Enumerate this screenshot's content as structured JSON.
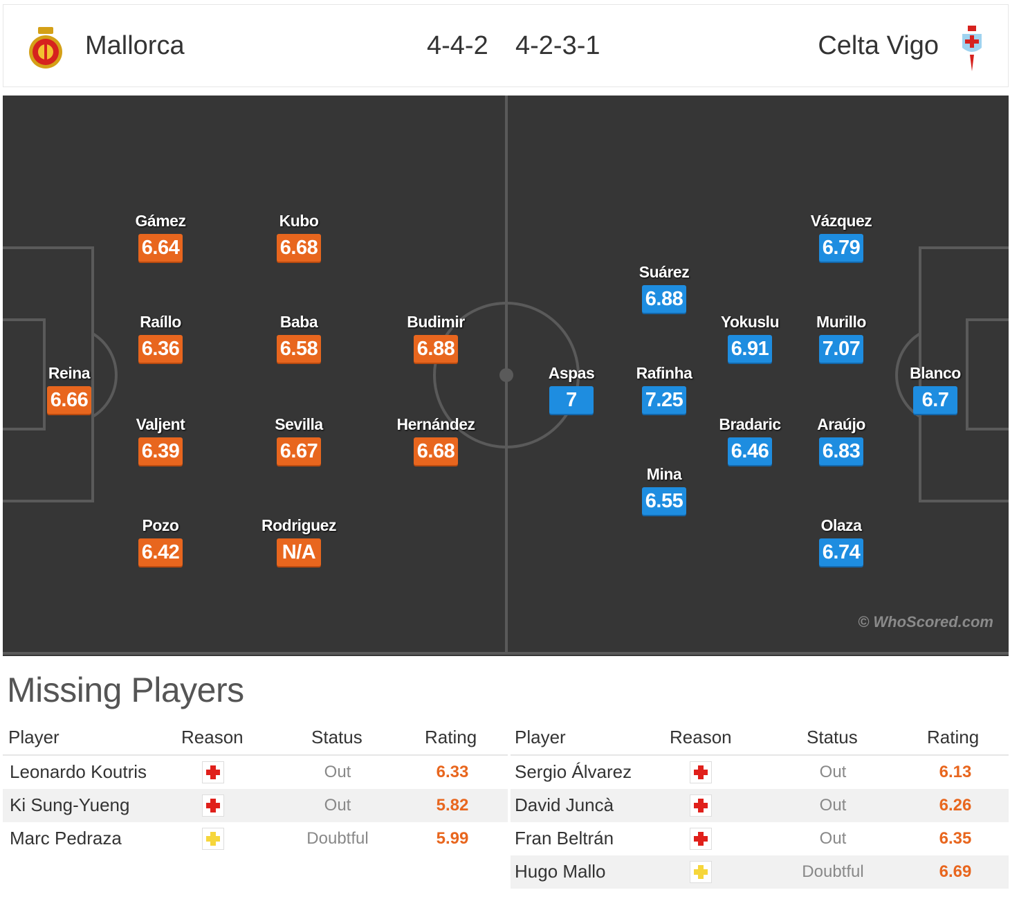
{
  "header": {
    "home_team": "Mallorca",
    "home_formation": "4-4-2",
    "away_formation": "4-2-3-1",
    "away_team": "Celta Vigo",
    "home_crest_icon": "mallorca-crest-icon",
    "away_crest_icon": "celta-vigo-crest-icon"
  },
  "colors": {
    "home_rating": "#e8661e",
    "away_rating": "#1e8de0",
    "pitch": "#363636",
    "injury": "#e0201b",
    "doubtful": "#f6d63b"
  },
  "lineup": {
    "home": [
      {
        "name": "Reina",
        "rating": "6.66"
      },
      {
        "name": "Gámez",
        "rating": "6.64"
      },
      {
        "name": "Raíllo",
        "rating": "6.36"
      },
      {
        "name": "Valjent",
        "rating": "6.39"
      },
      {
        "name": "Pozo",
        "rating": "6.42"
      },
      {
        "name": "Kubo",
        "rating": "6.68"
      },
      {
        "name": "Baba",
        "rating": "6.58"
      },
      {
        "name": "Sevilla",
        "rating": "6.67"
      },
      {
        "name": "Rodriguez",
        "rating": "N/A"
      },
      {
        "name": "Budimir",
        "rating": "6.88"
      },
      {
        "name": "Hernández",
        "rating": "6.68"
      }
    ],
    "away": [
      {
        "name": "Aspas",
        "rating": "7"
      },
      {
        "name": "Suárez",
        "rating": "6.88"
      },
      {
        "name": "Rafinha",
        "rating": "7.25"
      },
      {
        "name": "Mina",
        "rating": "6.55"
      },
      {
        "name": "Yokuslu",
        "rating": "6.91"
      },
      {
        "name": "Bradaric",
        "rating": "6.46"
      },
      {
        "name": "Vázquez",
        "rating": "6.79"
      },
      {
        "name": "Murillo",
        "rating": "7.07"
      },
      {
        "name": "Araújo",
        "rating": "6.83"
      },
      {
        "name": "Olaza",
        "rating": "6.74"
      },
      {
        "name": "Blanco",
        "rating": "6.7"
      }
    ]
  },
  "watermark": "© WhoScored.com",
  "missing": {
    "title": "Missing Players",
    "columns": {
      "player": "Player",
      "reason": "Reason",
      "status": "Status",
      "rating": "Rating"
    },
    "home": [
      {
        "player": "Leonardo Koutris",
        "reason": "injury",
        "status": "Out",
        "rating": "6.33"
      },
      {
        "player": "Ki Sung-Yueng",
        "reason": "injury",
        "status": "Out",
        "rating": "5.82"
      },
      {
        "player": "Marc Pedraza",
        "reason": "doubtful",
        "status": "Doubtful",
        "rating": "5.99"
      }
    ],
    "away": [
      {
        "player": "Sergio Álvarez",
        "reason": "injury",
        "status": "Out",
        "rating": "6.13"
      },
      {
        "player": "David Juncà",
        "reason": "injury",
        "status": "Out",
        "rating": "6.26"
      },
      {
        "player": "Fran Beltrán",
        "reason": "injury",
        "status": "Out",
        "rating": "6.35"
      },
      {
        "player": "Hugo Mallo",
        "reason": "doubtful",
        "status": "Doubtful",
        "rating": "6.69"
      }
    ]
  }
}
